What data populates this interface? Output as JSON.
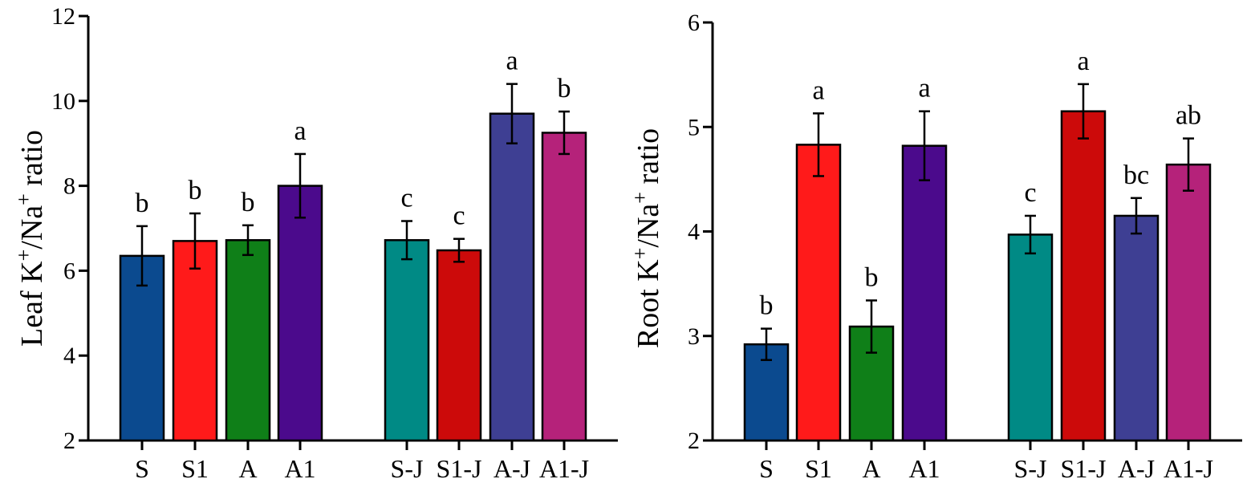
{
  "chart_data": [
    {
      "type": "bar",
      "title": "",
      "ylabel_parts": [
        "Leaf K",
        "+",
        "/Na",
        "+",
        " ratio"
      ],
      "xlabel": "",
      "ylim": [
        2,
        12
      ],
      "yticks": [
        2,
        4,
        6,
        8,
        10,
        12
      ],
      "categories": [
        "S",
        "S1",
        "A",
        "A1",
        "S-J",
        "S1-J",
        "A-J",
        "A1-J"
      ],
      "values": [
        6.35,
        6.7,
        6.72,
        8.0,
        6.72,
        6.48,
        9.7,
        9.25
      ],
      "errors": [
        0.7,
        0.65,
        0.35,
        0.75,
        0.45,
        0.27,
        0.7,
        0.5
      ],
      "significance": [
        "b",
        "b",
        "b",
        "a",
        "c",
        "c",
        "a",
        "b"
      ],
      "colors": [
        "#0b4a8f",
        "#ff1a1a",
        "#0f7f18",
        "#4b0a8c",
        "#008a85",
        "#cc0a0a",
        "#3e3f93",
        "#b5227a"
      ]
    },
    {
      "type": "bar",
      "title": "",
      "ylabel_parts": [
        "Root K",
        "+",
        "/Na",
        "+",
        " ratio"
      ],
      "xlabel": "",
      "ylim": [
        2,
        6
      ],
      "yticks": [
        2,
        3,
        4,
        5,
        6
      ],
      "categories": [
        "S",
        "S1",
        "A",
        "A1",
        "S-J",
        "S1-J",
        "A-J",
        "A1-J"
      ],
      "values": [
        2.92,
        4.83,
        3.09,
        4.82,
        3.97,
        5.15,
        4.15,
        4.64
      ],
      "errors": [
        0.15,
        0.3,
        0.25,
        0.33,
        0.18,
        0.26,
        0.17,
        0.25
      ],
      "significance": [
        "b",
        "a",
        "b",
        "a",
        "c",
        "a",
        "bc",
        "ab"
      ],
      "colors": [
        "#0b4a8f",
        "#ff1a1a",
        "#0f7f18",
        "#4b0a8c",
        "#008a85",
        "#cc0a0a",
        "#3e3f93",
        "#b5227a"
      ]
    }
  ]
}
